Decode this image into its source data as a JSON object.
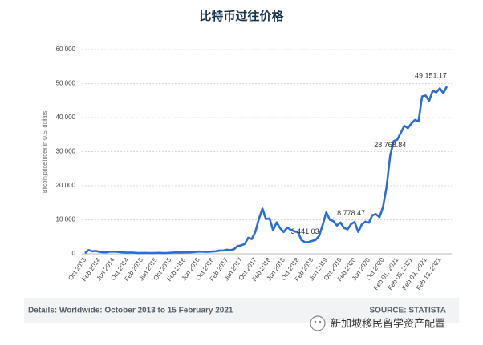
{
  "chart_data": {
    "type": "line",
    "title": "比特币过往价格",
    "y_label": "Bitcoin price index in U.S. dollars",
    "footer_left": "Details: Worldwide: October 2013 to 15 February 2021",
    "footer_right": "SOURCE: STATISTA",
    "watermark": "新加坡移民留学资产配置",
    "color": "#2a6ed4",
    "grid": true,
    "ylim": [
      0,
      60000
    ],
    "yticks": [
      0,
      {
        "value": 10000,
        "label": "10 000"
      },
      {
        "value": 20000,
        "label": "20 000"
      },
      {
        "value": 30000,
        "label": "30 000"
      },
      {
        "value": 40000,
        "label": "40 000"
      },
      {
        "value": 50000,
        "label": "50 000"
      },
      {
        "value": 60000,
        "label": "60 000"
      }
    ],
    "categories": [
      "Oct 2013",
      null,
      null,
      null,
      "Feb 2014",
      null,
      null,
      null,
      "Jun 2014",
      null,
      null,
      null,
      "Oct 2014",
      null,
      null,
      null,
      "Feb 2015",
      null,
      null,
      null,
      "Jun 2015",
      null,
      null,
      null,
      "Oct 2015",
      null,
      null,
      null,
      "Feb 2016",
      null,
      null,
      null,
      "Jun 2016",
      null,
      null,
      null,
      "Oct 2016",
      null,
      null,
      null,
      "Feb 2017",
      null,
      null,
      null,
      "Jun 2017",
      null,
      null,
      null,
      "Oct 2017",
      null,
      null,
      null,
      "Feb 2018",
      null,
      null,
      null,
      "Jun 2018",
      null,
      null,
      null,
      "Oct 2018",
      null,
      null,
      null,
      "Feb 2019",
      null,
      null,
      null,
      "Jun 2019",
      null,
      null,
      null,
      "Oct 2019",
      null,
      null,
      null,
      "Feb 2020",
      null,
      null,
      null,
      "Jun 2020",
      null,
      null,
      null,
      "Oct 2020",
      null,
      null,
      null,
      "Feb 01, 2021",
      null,
      null,
      null,
      "Feb 05, 2021",
      null,
      null,
      null,
      "Feb 09, 2021",
      null,
      null,
      null,
      "Feb 13, 2021",
      null,
      null
    ],
    "values": [
      200,
      1100,
      750,
      850,
      600,
      450,
      450,
      630,
      640,
      590,
      480,
      390,
      340,
      380,
      320,
      220,
      255,
      245,
      235,
      230,
      265,
      285,
      230,
      235,
      315,
      380,
      430,
      370,
      435,
      415,
      450,
      530,
      670,
      625,
      575,
      610,
      700,
      745,
      960,
      970,
      1190,
      1080,
      1350,
      2300,
      2480,
      2880,
      4700,
      4340,
      6470,
      10230,
      13300,
      10200,
      10400,
      6930,
      9240,
      7500,
      6400,
      7730,
      7030,
      6630,
      6370,
      4020,
      3441.03,
      3460,
      3800,
      4100,
      5300,
      8570,
      12200,
      10000,
      9600,
      8300,
      9200,
      7570,
      7200,
      8778.47,
      9350,
      6440,
      8630,
      9450,
      9140,
      11350,
      11650,
      10780,
      13800,
      19700,
      28768.84,
      33100,
      33500,
      35500,
      37600,
      36900,
      38300,
      39300,
      38900,
      46200,
      46500,
      44900,
      47900,
      47400,
      48600,
      47200,
      49151.17
    ],
    "value_labels": [
      null,
      null,
      null,
      null,
      null,
      null,
      null,
      null,
      null,
      null,
      null,
      null,
      null,
      null,
      null,
      null,
      null,
      null,
      null,
      null,
      null,
      null,
      null,
      null,
      null,
      null,
      null,
      null,
      null,
      null,
      null,
      null,
      null,
      null,
      null,
      null,
      null,
      null,
      null,
      null,
      null,
      null,
      null,
      null,
      null,
      null,
      null,
      null,
      null,
      null,
      null,
      null,
      null,
      null,
      null,
      null,
      null,
      null,
      null,
      null,
      null,
      null,
      "3 441.03",
      null,
      null,
      null,
      null,
      null,
      null,
      null,
      null,
      null,
      null,
      null,
      null,
      "8 778.47",
      null,
      null,
      null,
      null,
      null,
      null,
      null,
      null,
      null,
      null,
      "28 768.84",
      null,
      null,
      null,
      null,
      null,
      null,
      null,
      null,
      null,
      null,
      null,
      null,
      null,
      null,
      null,
      "49 151.17"
    ]
  }
}
